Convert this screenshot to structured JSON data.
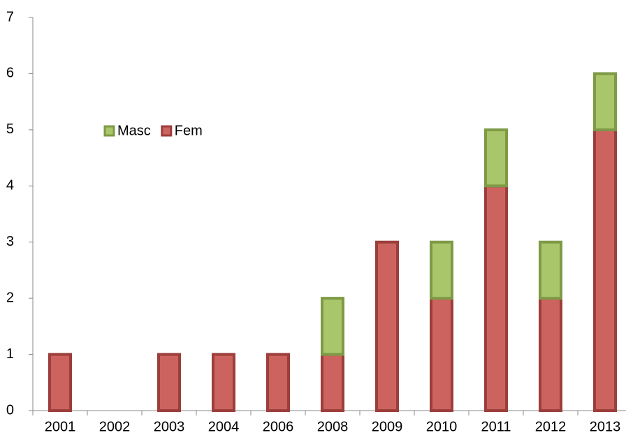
{
  "chart_data": {
    "type": "stacked_bar",
    "categories": [
      "2001",
      "2002",
      "2003",
      "2004",
      "2006",
      "2008",
      "2009",
      "2010",
      "2011",
      "2012",
      "2013"
    ],
    "series": [
      {
        "name": "Fem",
        "color": "#cd635f",
        "stroke": "#9c3e3b",
        "values": [
          1,
          0,
          1,
          1,
          1,
          1,
          3,
          2,
          4,
          2,
          5
        ]
      },
      {
        "name": "Masc",
        "color": "#a9c66a",
        "stroke": "#7e9a46",
        "values": [
          0,
          0,
          0,
          0,
          0,
          1,
          0,
          1,
          1,
          1,
          1
        ]
      }
    ],
    "ylim": [
      0,
      7
    ],
    "yticks": [
      0,
      1,
      2,
      3,
      4,
      5,
      6,
      7
    ],
    "grid": false,
    "legend": "left"
  }
}
